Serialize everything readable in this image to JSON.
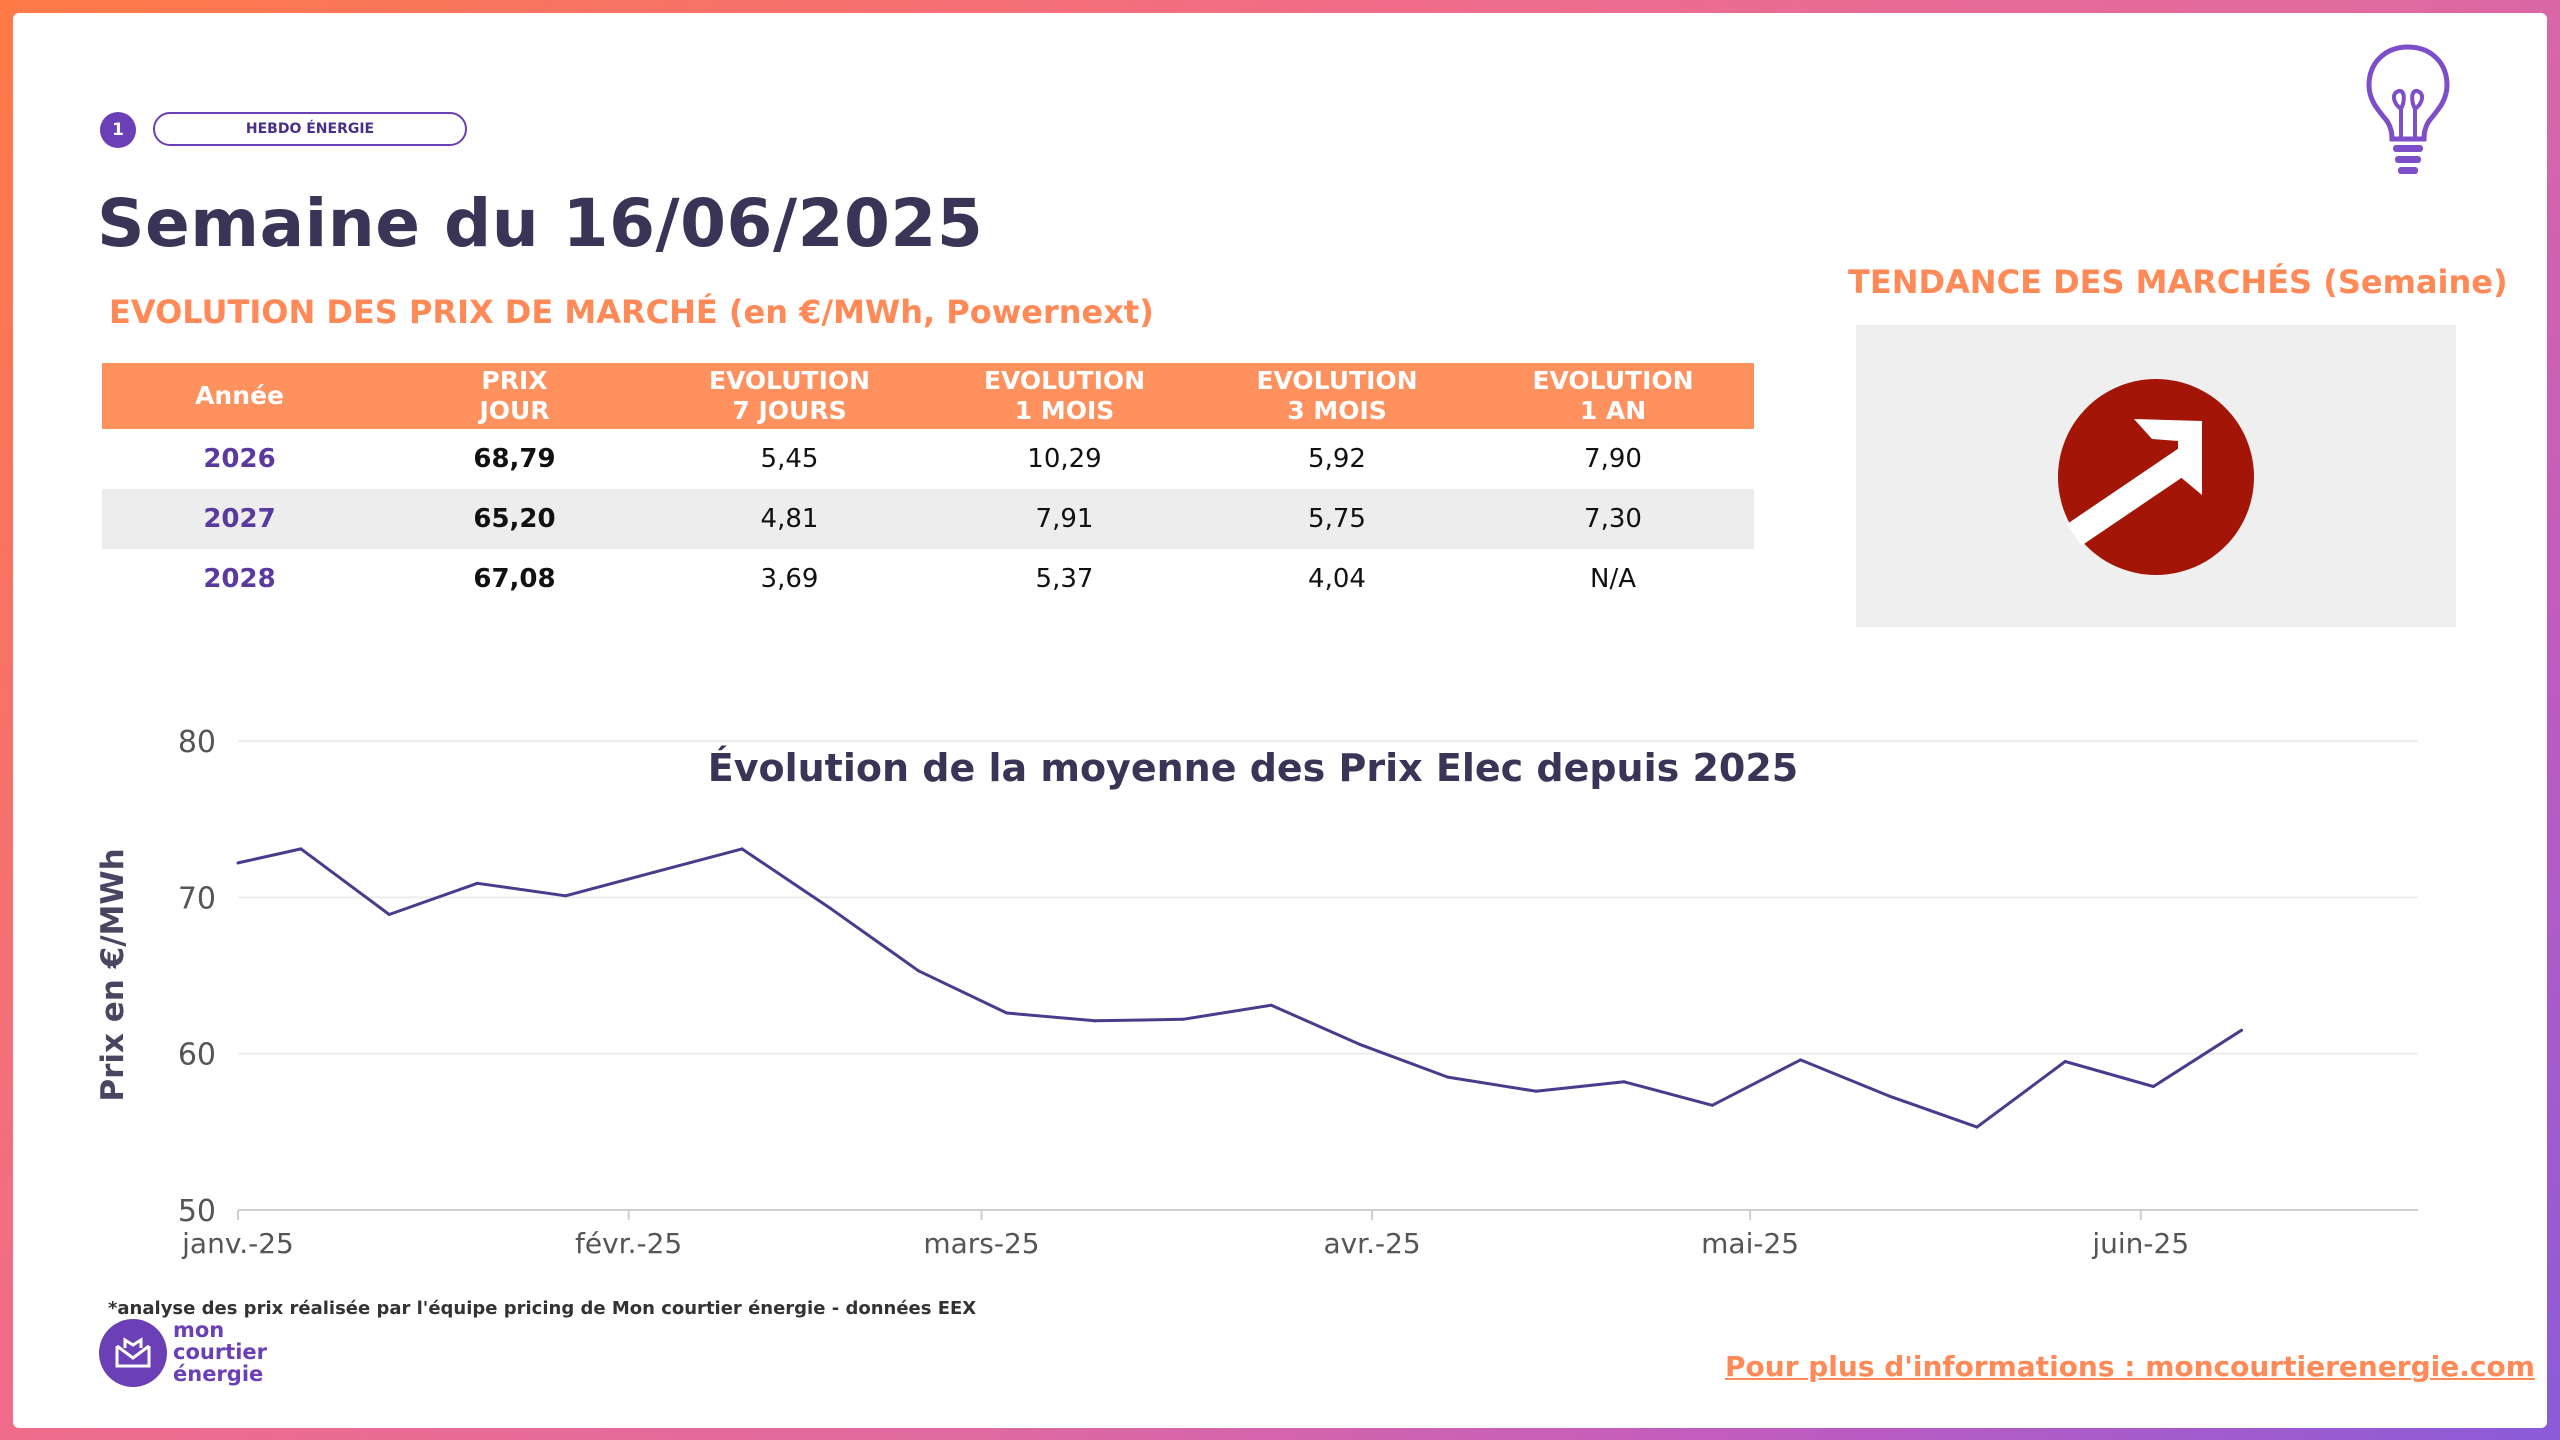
{
  "header": {
    "page_number": "1",
    "tag": "HEBDO ÉNERGIE",
    "title": "Semaine du 16/06/2025",
    "subtitle": "EVOLUTION DES PRIX DE MARCHÉ (en €/MWh, Powernext)"
  },
  "trend": {
    "title": "TENDANCE DES MARCHÉS (Semaine)",
    "direction_icon": "arrow-up-right-icon",
    "color": "#a21507"
  },
  "table": {
    "columns": [
      {
        "line1": "Année",
        "line2": ""
      },
      {
        "line1": "PRIX",
        "line2": "JOUR"
      },
      {
        "line1": "EVOLUTION",
        "line2": "7 JOURS"
      },
      {
        "line1": "EVOLUTION",
        "line2": "1 MOIS"
      },
      {
        "line1": "EVOLUTION",
        "line2": "3 MOIS"
      },
      {
        "line1": "EVOLUTION",
        "line2": "1 AN"
      }
    ],
    "rows": [
      [
        "2026",
        "68,79",
        "5,45",
        "10,29",
        "5,92",
        "7,90"
      ],
      [
        "2027",
        "65,20",
        "4,81",
        "7,91",
        "5,75",
        "7,30"
      ],
      [
        "2028",
        "67,08",
        "3,69",
        "5,37",
        "4,04",
        "N/A"
      ]
    ]
  },
  "chart_data": {
    "type": "line",
    "title": "Évolution de la moyenne des Prix Elec depuis 2025",
    "ylabel": "Prix en €/MWh",
    "xlabel": "",
    "ylim": [
      50,
      80
    ],
    "yticks": [
      50,
      60,
      70,
      80
    ],
    "xlim": [
      "2025-01-01",
      "2025-06-23"
    ],
    "xticks": [
      {
        "date": "2025-01-01",
        "label": "janv.-25"
      },
      {
        "date": "2025-02-01",
        "label": "févr.-25"
      },
      {
        "date": "2025-03-01",
        "label": "mars-25"
      },
      {
        "date": "2025-04-01",
        "label": "avr.-25"
      },
      {
        "date": "2025-05-01",
        "label": "mai-25"
      },
      {
        "date": "2025-06-01",
        "label": "juin-25"
      }
    ],
    "grid": "horizontal",
    "series": [
      {
        "color": "#4a3b8c",
        "points": [
          {
            "x": "2025-01-01",
            "y": 72.2
          },
          {
            "x": "2025-01-06",
            "y": 73.1
          },
          {
            "x": "2025-01-13",
            "y": 68.9
          },
          {
            "x": "2025-01-20",
            "y": 70.9
          },
          {
            "x": "2025-01-27",
            "y": 70.1
          },
          {
            "x": "2025-02-03",
            "y": 71.6
          },
          {
            "x": "2025-02-10",
            "y": 73.1
          },
          {
            "x": "2025-02-17",
            "y": 69.3
          },
          {
            "x": "2025-02-24",
            "y": 65.3
          },
          {
            "x": "2025-03-03",
            "y": 62.6
          },
          {
            "x": "2025-03-10",
            "y": 62.1
          },
          {
            "x": "2025-03-17",
            "y": 62.2
          },
          {
            "x": "2025-03-24",
            "y": 63.1
          },
          {
            "x": "2025-03-31",
            "y": 60.6
          },
          {
            "x": "2025-04-07",
            "y": 58.5
          },
          {
            "x": "2025-04-14",
            "y": 57.6
          },
          {
            "x": "2025-04-21",
            "y": 58.2
          },
          {
            "x": "2025-04-28",
            "y": 56.7
          },
          {
            "x": "2025-05-05",
            "y": 59.6
          },
          {
            "x": "2025-05-12",
            "y": 57.3
          },
          {
            "x": "2025-05-19",
            "y": 55.3
          },
          {
            "x": "2025-05-26",
            "y": 59.5
          },
          {
            "x": "2025-06-02",
            "y": 57.9
          },
          {
            "x": "2025-06-09",
            "y": 61.5
          }
        ]
      }
    ]
  },
  "footer": {
    "footnote": "*analyse des prix réalisée par l'équipe pricing de Mon courtier énergie -  données EEX",
    "logo_line1": "mon",
    "logo_line2": "courtier",
    "logo_line3": "énergie",
    "more_info": "Pour plus d'informations : moncourtierenergie.com"
  }
}
